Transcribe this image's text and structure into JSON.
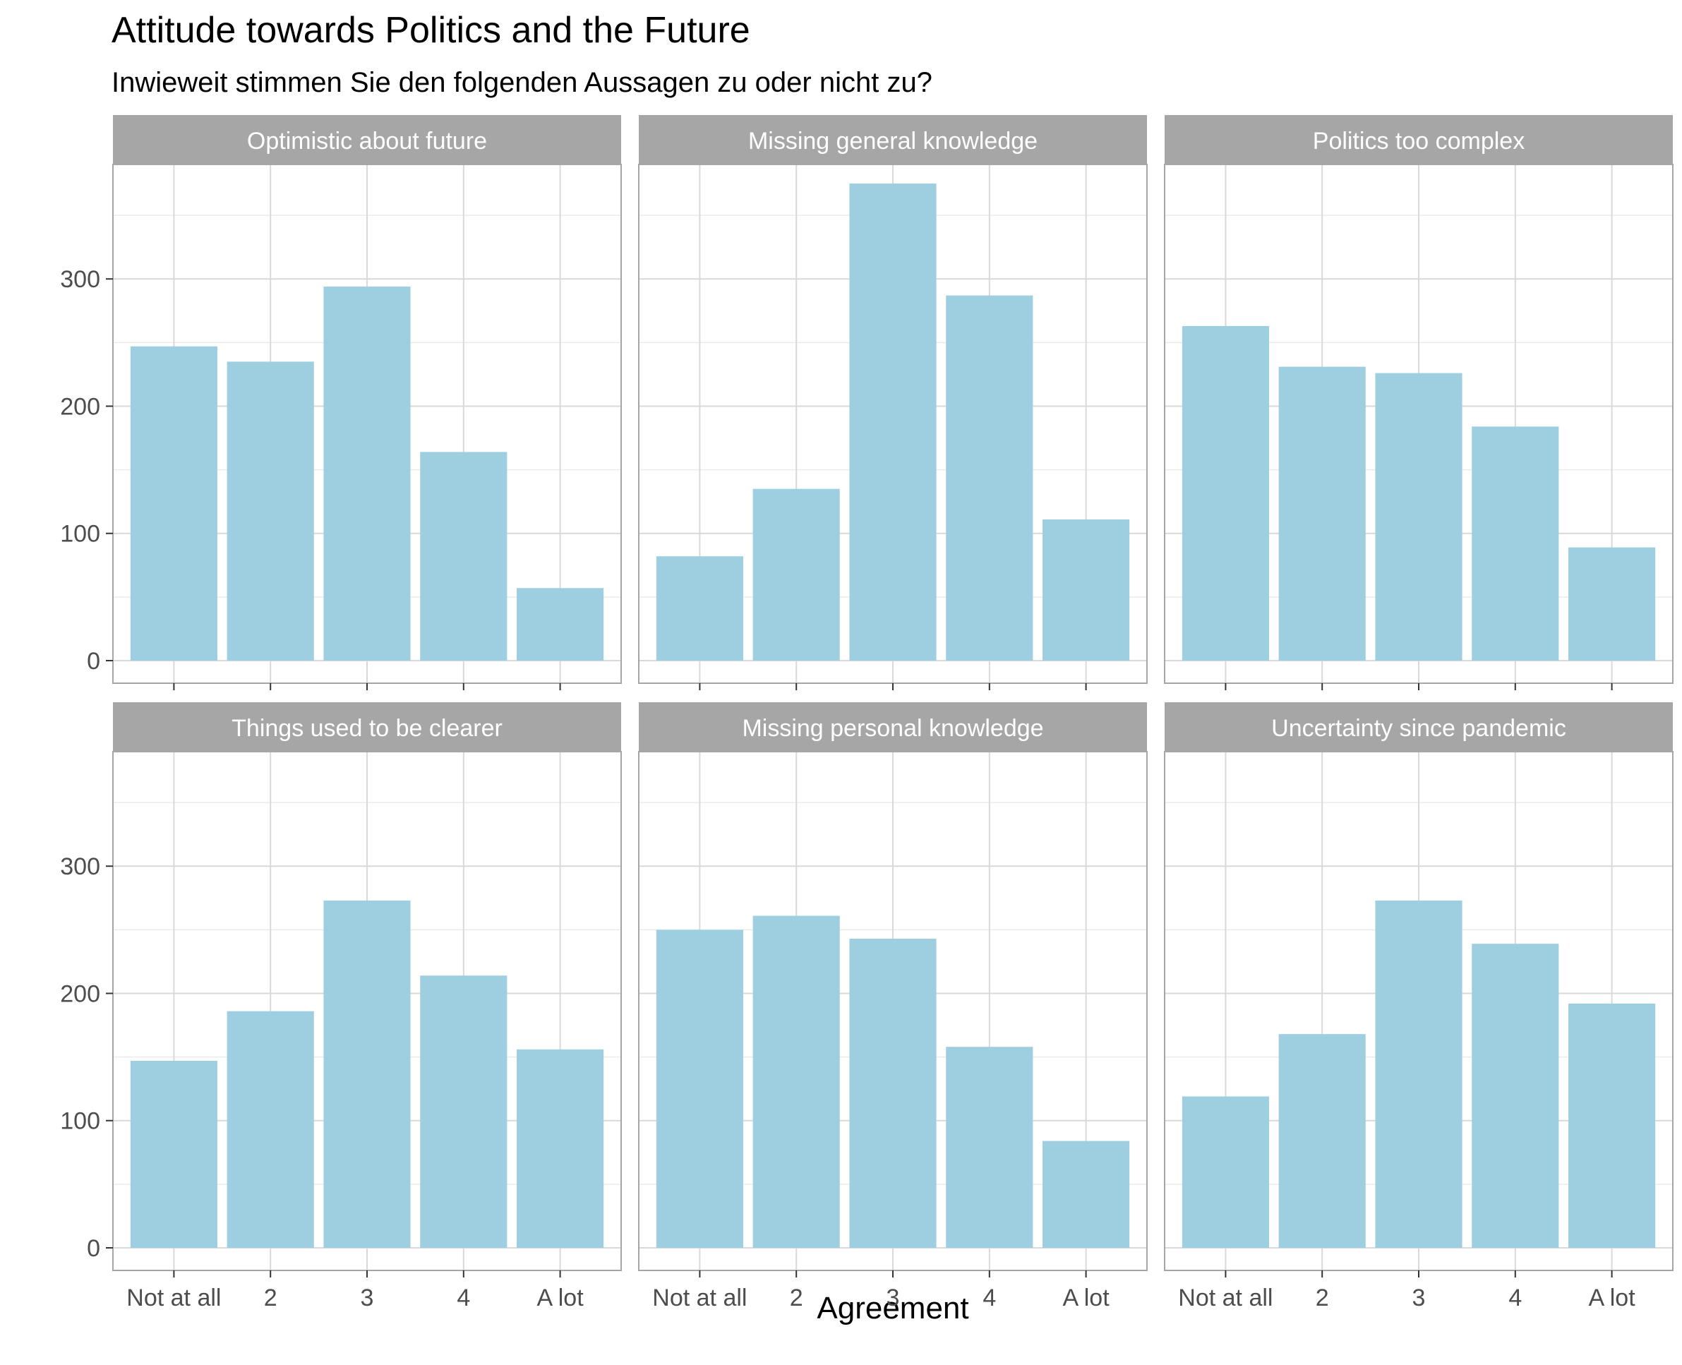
{
  "chart_data": {
    "type": "bar",
    "title": "Attitude towards Politics and the Future",
    "subtitle": "Inwieweit stimmen Sie den folgenden Aussagen zu oder nicht zu?",
    "xlabel": "Agreement",
    "ylabel": "",
    "categories": [
      "Not at all",
      "2",
      "3",
      "4",
      "A lot"
    ],
    "ylim": [
      0,
      390
    ],
    "yticks": [
      0,
      100,
      200,
      300
    ],
    "grid": true,
    "bar_color": "#9ecfe0",
    "strip_color": "#a6a6a6",
    "panels": [
      {
        "name": "Optimistic about future",
        "values": [
          247,
          235,
          294,
          164,
          57
        ]
      },
      {
        "name": "Missing general knowledge",
        "values": [
          82,
          135,
          375,
          287,
          111
        ]
      },
      {
        "name": "Politics too complex",
        "values": [
          263,
          231,
          226,
          184,
          89
        ]
      },
      {
        "name": "Things used to be clearer",
        "values": [
          147,
          186,
          273,
          214,
          156
        ]
      },
      {
        "name": "Missing personal knowledge",
        "values": [
          250,
          261,
          243,
          158,
          84
        ]
      },
      {
        "name": "Uncertainty since pandemic",
        "values": [
          119,
          168,
          273,
          239,
          192
        ]
      }
    ]
  }
}
